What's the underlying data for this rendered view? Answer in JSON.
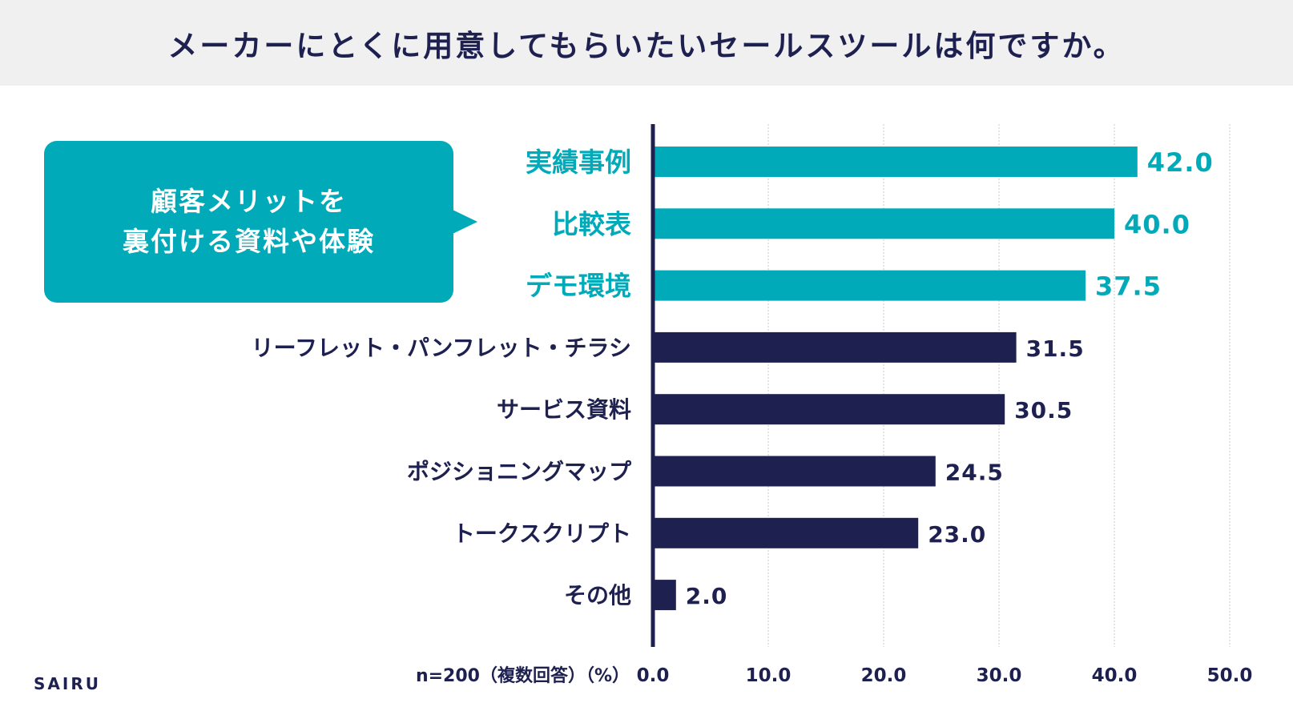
{
  "title": "メーカーにとくに用意してもらいたいセールスツールは何ですか。",
  "callout": {
    "text": "顧客メリットを\n裏付ける資料や体験"
  },
  "brand": "SAIRU",
  "colors": {
    "highlight": "#00aab8",
    "primary": "#1e2050",
    "grid": "#cccccc",
    "header_bg": "#f0f0f0"
  },
  "chart_data": {
    "type": "bar",
    "orientation": "horizontal",
    "categories": [
      "実績事例",
      "比較表",
      "デモ環境",
      "リーフレット・パンフレット・チラシ",
      "サービス資料",
      "ポジショニングマップ",
      "トークスクリプト",
      "その他"
    ],
    "values": [
      42.0,
      40.0,
      37.5,
      31.5,
      30.5,
      24.5,
      23.0,
      2.0
    ],
    "value_labels": [
      "42.0",
      "40.0",
      "37.5",
      "31.5",
      "30.5",
      "24.5",
      "23.0",
      "2.0"
    ],
    "highlighted": [
      true,
      true,
      true,
      false,
      false,
      false,
      false,
      false
    ],
    "xlim": [
      0,
      50
    ],
    "ticks": [
      0,
      10,
      20,
      30,
      40,
      50
    ],
    "tick_labels": [
      "0.0",
      "10.0",
      "20.0",
      "30.0",
      "40.0",
      "50.0"
    ],
    "axis_note": "n=200（複数回答）（%）",
    "grid": true
  }
}
